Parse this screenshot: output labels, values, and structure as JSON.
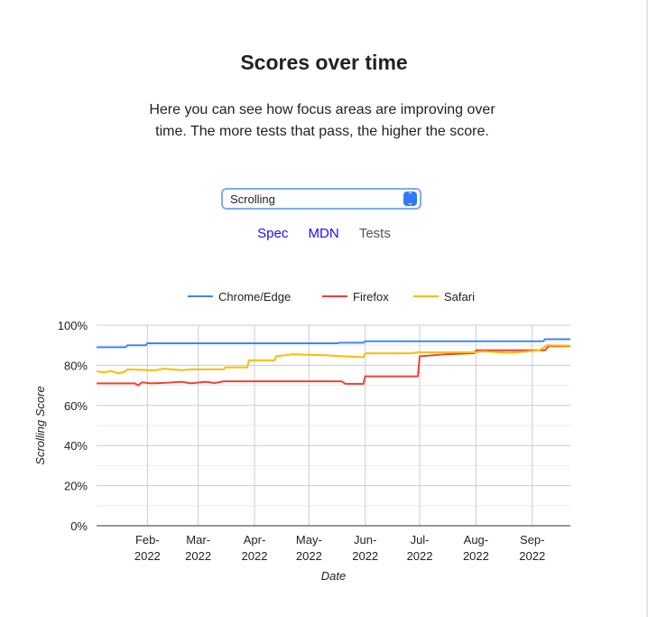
{
  "heading": "Scores over time",
  "description": "Here you can see how focus areas are improving over time. The more tests that pass, the higher the score.",
  "focus_select": {
    "value": "Scrolling",
    "icon": "up-down-chevron-icon"
  },
  "links": [
    {
      "label": "Spec"
    },
    {
      "label": "MDN"
    },
    {
      "label": "Tests"
    }
  ],
  "colors": {
    "link": "#1a0dff",
    "select_border": "#7faaf5"
  },
  "chart_data": {
    "type": "line",
    "xlabel": "Date",
    "ylabel": "Scrolling Score",
    "xlim": [
      "2022-01-04",
      "2022-09-22"
    ],
    "ylim": [
      0,
      100
    ],
    "yticks": [
      "0%",
      "20%",
      "40%",
      "60%",
      "80%",
      "100%"
    ],
    "xticks": [
      {
        "date": "2022-02-01",
        "label": [
          "Feb-",
          "2022"
        ]
      },
      {
        "date": "2022-03-01",
        "label": [
          "Mar-",
          "2022"
        ]
      },
      {
        "date": "2022-04-01",
        "label": [
          "Apr-",
          "2022"
        ]
      },
      {
        "date": "2022-05-01",
        "label": [
          "May-",
          "2022"
        ]
      },
      {
        "date": "2022-06-01",
        "label": [
          "Jun-",
          "2022"
        ]
      },
      {
        "date": "2022-07-01",
        "label": [
          "Jul-",
          "2022"
        ]
      },
      {
        "date": "2022-08-01",
        "label": [
          "Aug-",
          "2022"
        ]
      },
      {
        "date": "2022-09-01",
        "label": [
          "Sep-",
          "2022"
        ]
      }
    ],
    "grid": true,
    "legend": "top",
    "series": [
      {
        "name": "Chrome/Edge",
        "color": "#4285f4",
        "points": [
          [
            "2022-01-04",
            89
          ],
          [
            "2022-01-20",
            89
          ],
          [
            "2022-01-21",
            90
          ],
          [
            "2022-01-31",
            90
          ],
          [
            "2022-02-01",
            91
          ],
          [
            "2022-05-17",
            91
          ],
          [
            "2022-05-18",
            91.3
          ],
          [
            "2022-05-31",
            91.3
          ],
          [
            "2022-06-01",
            92
          ],
          [
            "2022-09-07",
            92
          ],
          [
            "2022-09-08",
            93
          ],
          [
            "2022-09-22",
            93
          ]
        ]
      },
      {
        "name": "Firefox",
        "color": "#ea4335",
        "points": [
          [
            "2022-01-04",
            71
          ],
          [
            "2022-01-25",
            71
          ],
          [
            "2022-01-27",
            70
          ],
          [
            "2022-01-29",
            71.5
          ],
          [
            "2022-02-03",
            71
          ],
          [
            "2022-02-10",
            71.2
          ],
          [
            "2022-02-20",
            71.8
          ],
          [
            "2022-02-25",
            71
          ],
          [
            "2022-03-05",
            71.8
          ],
          [
            "2022-03-10",
            71.2
          ],
          [
            "2022-03-15",
            72
          ],
          [
            "2022-05-19",
            72
          ],
          [
            "2022-05-21",
            70.8
          ],
          [
            "2022-05-31",
            70.8
          ],
          [
            "2022-06-01",
            74.5
          ],
          [
            "2022-06-30",
            74.5
          ],
          [
            "2022-07-01",
            84.5
          ],
          [
            "2022-07-15",
            85.5
          ],
          [
            "2022-07-31",
            86
          ],
          [
            "2022-08-01",
            87.5
          ],
          [
            "2022-09-08",
            87.5
          ],
          [
            "2022-09-10",
            89.5
          ],
          [
            "2022-09-22",
            89.5
          ]
        ]
      },
      {
        "name": "Safari",
        "color": "#fbbc04",
        "points": [
          [
            "2022-01-04",
            77
          ],
          [
            "2022-01-08",
            76.5
          ],
          [
            "2022-01-12",
            77.2
          ],
          [
            "2022-01-16",
            76
          ],
          [
            "2022-01-20",
            77
          ],
          [
            "2022-01-21",
            78
          ],
          [
            "2022-02-05",
            77.5
          ],
          [
            "2022-02-10",
            78.3
          ],
          [
            "2022-02-20",
            77.6
          ],
          [
            "2022-02-25",
            78
          ],
          [
            "2022-03-15",
            78
          ],
          [
            "2022-03-16",
            79
          ],
          [
            "2022-03-28",
            79
          ],
          [
            "2022-03-29",
            82.5
          ],
          [
            "2022-04-12",
            82.5
          ],
          [
            "2022-04-13",
            84.5
          ],
          [
            "2022-04-22",
            85.5
          ],
          [
            "2022-05-10",
            85
          ],
          [
            "2022-05-20",
            84.5
          ],
          [
            "2022-05-31",
            84
          ],
          [
            "2022-06-01",
            86
          ],
          [
            "2022-06-25",
            86
          ],
          [
            "2022-07-01",
            86.5
          ],
          [
            "2022-07-31",
            86.5
          ],
          [
            "2022-08-05",
            87
          ],
          [
            "2022-08-20",
            86.2
          ],
          [
            "2022-09-05",
            87.5
          ],
          [
            "2022-09-09",
            90
          ],
          [
            "2022-09-22",
            89.8
          ]
        ]
      }
    ]
  }
}
